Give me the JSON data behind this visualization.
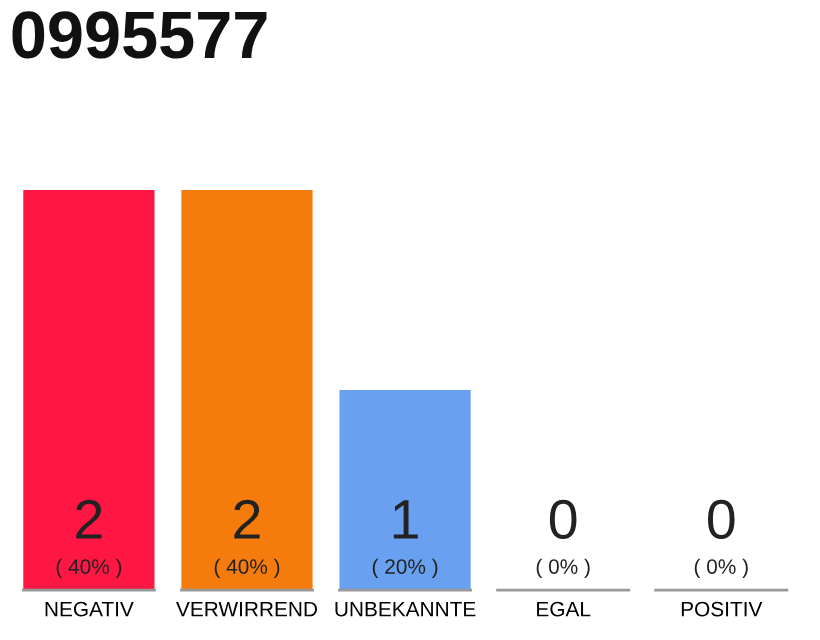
{
  "chart_data": {
    "type": "bar",
    "title": "0995577",
    "categories": [
      "NEGATIV",
      "VERWIRREND",
      "UNBEKANNTE",
      "EGAL",
      "POSITIV"
    ],
    "values": [
      2,
      2,
      1,
      0,
      0
    ],
    "colors": [
      "#ff1744",
      "#f57c0c",
      "#6aa0f0",
      "#9e9e9e",
      "#9e9e9e"
    ],
    "value_labels": [
      "2\n( 40% )",
      "2\n( 40% )",
      "1\n( 20% )",
      "0\n( 0% )",
      "0\n( 0% )"
    ]
  }
}
